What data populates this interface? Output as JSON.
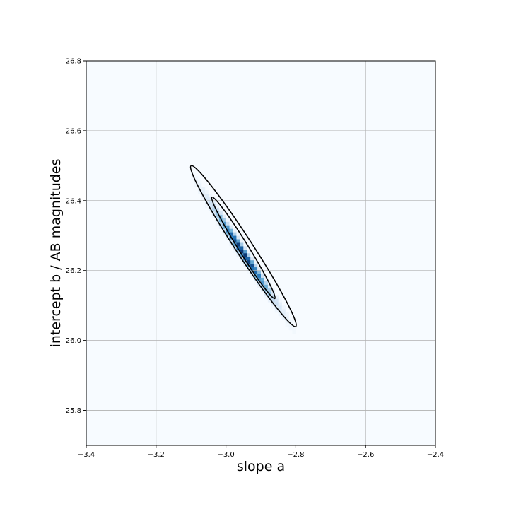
{
  "chart_data": {
    "type": "heatmap",
    "title": "",
    "xlabel": "slope a",
    "ylabel": "intercept b / AB magnitudes",
    "xlim": [
      -3.4,
      -2.4
    ],
    "ylim": [
      25.7,
      26.8
    ],
    "x_ticks": [
      -3.4,
      -3.2,
      -3.0,
      -2.8,
      -2.6,
      -2.4
    ],
    "x_tick_labels": [
      "−3.4",
      "−3.2",
      "−3.0",
      "−2.8",
      "−2.6",
      "−2.4"
    ],
    "y_ticks": [
      25.8,
      26.0,
      26.2,
      26.4,
      26.6,
      26.8
    ],
    "y_tick_labels": [
      "25.8",
      "26.0",
      "26.2",
      "26.4",
      "26.6",
      "26.8"
    ],
    "grid": true,
    "colormap": "Blues",
    "posterior": {
      "peak_a": -2.95,
      "peak_b": 26.25,
      "slope_db_da": -1.5
    },
    "contours": [
      {
        "level": "inner",
        "a_range": [
          -3.04,
          -2.86
        ],
        "b_range": [
          26.12,
          26.41
        ]
      },
      {
        "level": "outer",
        "a_range": [
          -3.1,
          -2.8
        ],
        "b_range": [
          26.04,
          26.5
        ]
      }
    ],
    "colors": {
      "background": "#f7fbff",
      "peak": "#08306b",
      "grid": "#b0b0b0",
      "contour": "#000000"
    }
  }
}
